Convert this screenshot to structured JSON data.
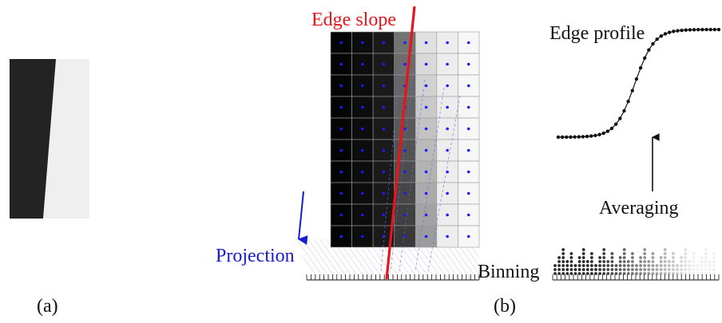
{
  "labels": {
    "panel_a": "(a)",
    "panel_b": "(b)",
    "edge_slope": "Edge slope",
    "projection": "Projection",
    "binning": "Binning",
    "averaging": "Averaging",
    "edge_profile": "Edge profile"
  },
  "colors": {
    "edge_slope": "#e8141c",
    "projection": "#1a1ad0",
    "sample_dot": "#1a1aff",
    "text": "#111111",
    "grid_line": "#9a9a9a"
  },
  "pixel_grid": {
    "rows": 10,
    "cols": 7,
    "column_gray_levels": [
      0.02,
      0.05,
      0.1,
      0.3,
      0.78,
      0.93,
      0.97
    ]
  },
  "edge_profile_points": 40,
  "binning_columns": 40
}
